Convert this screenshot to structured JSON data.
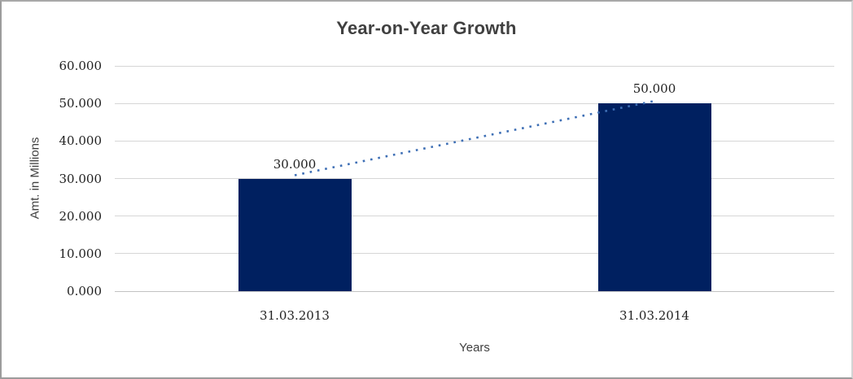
{
  "chart_data": {
    "type": "bar",
    "title": "Year-on-Year Growth",
    "xlabel": "Years",
    "ylabel": "Amt. in Millions",
    "categories": [
      "31.03.2013",
      "31.03.2014"
    ],
    "series": [
      {
        "name": "Amt. in Millions",
        "values": [
          30000,
          50000
        ]
      }
    ],
    "value_labels": [
      "30.000",
      "50.000"
    ],
    "ylim": [
      0,
      60000
    ],
    "yticks": [
      {
        "value": 0,
        "label": "0.000"
      },
      {
        "value": 10000,
        "label": "10.000"
      },
      {
        "value": 20000,
        "label": "20.000"
      },
      {
        "value": 30000,
        "label": "30.000"
      },
      {
        "value": 40000,
        "label": "40.000"
      },
      {
        "value": 50000,
        "label": "50.000"
      },
      {
        "value": 60000,
        "label": "60.000"
      }
    ],
    "grid": "horizontal",
    "legend": "none",
    "trendline": {
      "type": "linear",
      "style": "dotted",
      "from_point": [
        0,
        30000
      ],
      "to_point": [
        1,
        50000
      ]
    },
    "colors": {
      "bar": "#002060",
      "trendline": "#3E6FB5",
      "gridline": "#D6D6D6",
      "axis_line": "#C2C2C2",
      "title_text": "#404040",
      "axis_title_text": "#3F3F3F",
      "tick_text": "#1F1F1F"
    }
  }
}
